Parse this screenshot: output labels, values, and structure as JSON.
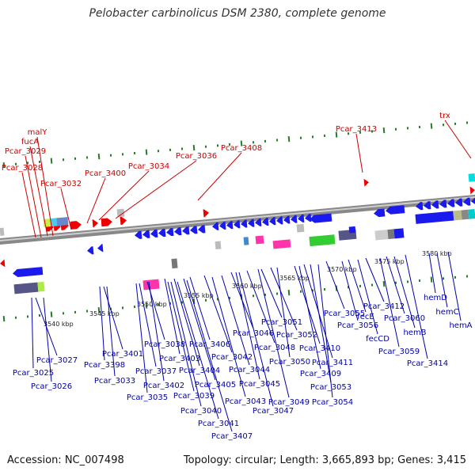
{
  "title": "Pelobacter carbinolicus DSM 2380, complete genome",
  "accession": "Accession: NC_007498",
  "summary": "Topology: circular; Length: 3,665,893 bp; Genes: 3,415",
  "colors": {
    "forward_gene": "#ee0000",
    "reverse_gene": "#1a1aee",
    "backbone": "#999999",
    "tick": "#2a7a2a",
    "label_red": "#cc0000",
    "label_blue": "#0000aa"
  },
  "scale_labels": [
    "3540 kbp",
    "3545 kbp",
    "3550 kbp",
    "3555 kbp",
    "3560 kbp",
    "3565 kbp",
    "3570 kbp",
    "3575 kbp",
    "3580 kbp"
  ],
  "forward_labels": [
    "malY",
    "fucA",
    "Pcar_3029",
    "Pcar_3028",
    "Pcar_3032",
    "Pcar_3400",
    "Pcar_3034",
    "Pcar_3036",
    "Pcar_3408",
    "Pcar_3413",
    "trx"
  ],
  "reverse_labels": [
    "Pcar_3027",
    "Pcar_3025",
    "Pcar_3026",
    "Pcar_3401",
    "Pcar_3398",
    "Pcar_3033",
    "Pcar_3038",
    "Pcar_3037",
    "Pcar_3402",
    "Pcar_3035",
    "Pcar_3403",
    "Pcar_3406",
    "Pcar_3404",
    "Pcar_3039",
    "Pcar_3405",
    "Pcar_3040",
    "Pcar_3042",
    "Pcar_3041",
    "Pcar_3407",
    "Pcar_3044",
    "Pcar_3043",
    "Pcar_3046",
    "Pcar_3045",
    "Pcar_3048",
    "Pcar_3047",
    "Pcar_3049",
    "Pcar_3051",
    "Pcar_3052",
    "Pcar_3050",
    "Pcar_3410",
    "Pcar_3411",
    "Pcar_3409",
    "Pcar_3053",
    "Pcar_3054",
    "Pcar_3055",
    "fecE",
    "Pcar_3056",
    "Pcar_3412",
    "fecCD",
    "Pcar_3060",
    "Pcar_3059",
    "hemB",
    "Pcar_3414",
    "hemD",
    "hemC",
    "hemA"
  ]
}
